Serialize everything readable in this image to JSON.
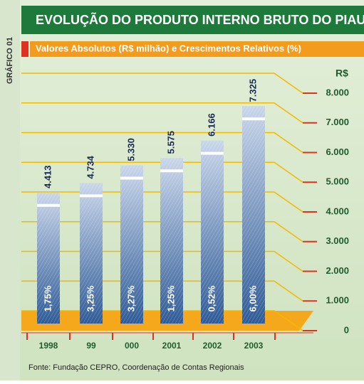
{
  "chart_data": {
    "type": "bar",
    "side_label": "GRÁFICO 01",
    "title": "EVOLUÇÃO DO PRODUTO INTERNO BRUTO DO PIAUÍ",
    "subtitle": "Valores Absolutos (R$ milhão) e Crescimentos Relativos (%)",
    "y_axis_label": "R$",
    "categories": [
      "1998",
      "99",
      "000",
      "2001",
      "2002",
      "2003"
    ],
    "values": [
      4413,
      4734,
      5330,
      5575,
      6166,
      7325
    ],
    "value_labels": [
      "4.413",
      "4.734",
      "5.330",
      "5.575",
      "6.166",
      "7.325"
    ],
    "growth_labels": [
      "1,75%",
      "3,25%",
      "3,27%",
      "1,25%",
      "0,52%",
      "6,00%"
    ],
    "color": "#5a7fb8",
    "ylim": [
      0,
      8000
    ],
    "yticks": [
      0,
      {
        "value": 1000,
        "label": "1.000"
      },
      {
        "value": 2000,
        "label": "2.000"
      },
      {
        "value": 3000,
        "label": "3.000"
      },
      {
        "value": 4000,
        "label": "4.000"
      },
      {
        "value": 5000,
        "label": "5.000"
      },
      {
        "value": 6000,
        "label": "6.000"
      },
      {
        "value": 7000,
        "label": "7.000"
      },
      {
        "value": 8000,
        "label": "8.000"
      }
    ],
    "grid": true,
    "source": "Fonte: Fundação CEPRO, Coordenação de Contas Regionais"
  }
}
